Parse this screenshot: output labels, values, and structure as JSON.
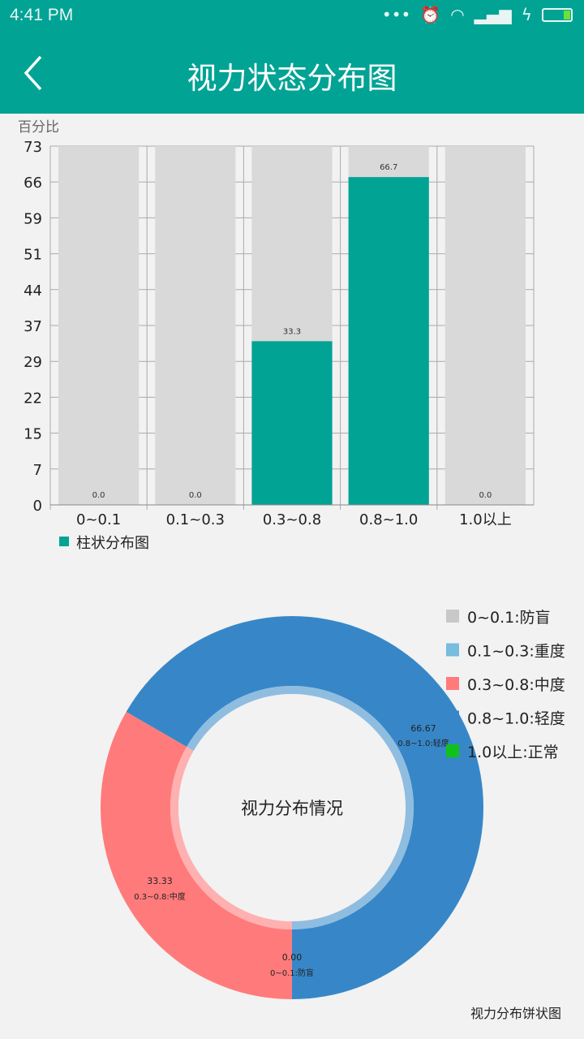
{
  "status_bar": {
    "time": "4:41 PM",
    "icons": [
      "more-dots-icon",
      "alarm-icon",
      "wifi-icon",
      "signal-icon",
      "charging-icon",
      "battery-icon"
    ]
  },
  "app_bar": {
    "title": "视力状态分布图",
    "back_icon": "chevron-left-icon"
  },
  "colors": {
    "accent": "#00a394",
    "bar_bg": "#d9d9d9"
  },
  "chart_data": [
    {
      "type": "bar",
      "ylabel": "百分比",
      "ylim": [
        0,
        73
      ],
      "yticks": [
        "0",
        "7",
        "15",
        "22",
        "29",
        "37",
        "44",
        "51",
        "59",
        "66",
        "73"
      ],
      "categories": [
        "0~0.1",
        "0.1~0.3",
        "0.3~0.8",
        "0.8~1.0",
        "1.0以上"
      ],
      "values": [
        0.0,
        0.0,
        33.3,
        66.7,
        0.0
      ],
      "data_labels": [
        "0.0",
        "0.0",
        "33.3",
        "66.7",
        "0.0"
      ],
      "series": [
        {
          "name": "柱状分布图",
          "color": "#00a394"
        }
      ],
      "legend": "bottom-left",
      "grid": true
    },
    {
      "type": "pie",
      "center_text": "视力分布情况",
      "caption": "视力分布饼状图",
      "legend": "top-right",
      "slices": [
        {
          "label": "0~0.1:防盲",
          "value": 0,
          "color": "#c8c8c8"
        },
        {
          "label": "0.1~0.3:重度",
          "value": 0,
          "color": "#78bcde"
        },
        {
          "label": "0.3~0.8:中度",
          "value": 33.33,
          "color": "#ff7b7b"
        },
        {
          "label": "0.8~1.0:轻度",
          "value": 66.67,
          "color": "#3787c8"
        },
        {
          "label": "1.0以上:正常",
          "value": 0,
          "color": "#11c11b"
        }
      ],
      "value_labels": [
        "33.33",
        "66.67",
        "0.00"
      ],
      "slice_labels": [
        "0.3~0.8:中度",
        "0.8~1.0:轻度",
        "0~0.1:防盲"
      ]
    }
  ]
}
